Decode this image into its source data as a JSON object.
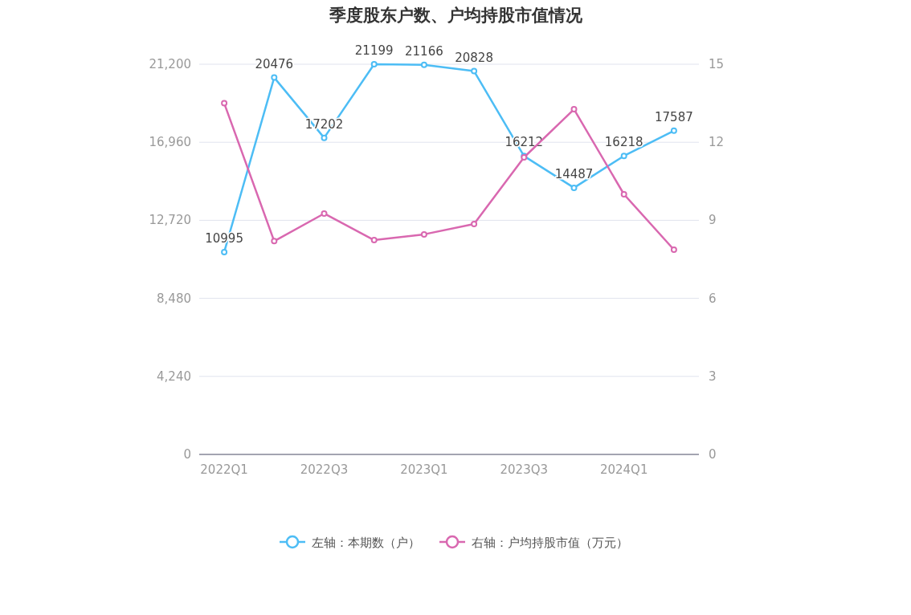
{
  "chart_data": {
    "type": "line",
    "title": "季度股东户数、户均持股市值情况",
    "categories": [
      "2022Q1",
      null,
      "2022Q3",
      null,
      "2023Q1",
      null,
      "2023Q3",
      null,
      "2024Q1",
      null
    ],
    "series": [
      {
        "name": "左轴：本期数（户）",
        "color": "#4dbdf5",
        "values": [
          10995,
          20476,
          17202,
          21199,
          21166,
          20828,
          16212,
          14487,
          16218,
          17587
        ],
        "value_labels": [
          "10995",
          "20476",
          "17202",
          "21199",
          "21166",
          "20828",
          "16212",
          "14487",
          "16218",
          "17587"
        ]
      },
      {
        "name": "右轴：户均持股市值（万元）",
        "color": "#d968b0",
        "axis": "y2",
        "values": [
          13.5,
          8.2,
          9.26,
          8.24,
          8.46,
          8.86,
          11.42,
          13.27,
          10.0,
          7.87
        ]
      }
    ],
    "ylim": [
      0,
      21200
    ],
    "yticks": [
      0,
      {
        "value": 4240,
        "label": "4,240"
      },
      {
        "value": 8480,
        "label": "8,480"
      },
      {
        "value": 12720,
        "label": "12,720"
      },
      {
        "value": 16960,
        "label": "16,960"
      },
      {
        "value": 21200,
        "label": "21,200"
      }
    ],
    "y2lim": [
      0,
      15
    ],
    "y2ticks": [
      0,
      3,
      6,
      9,
      12,
      15
    ],
    "grid": "y",
    "legend": "bottom",
    "marker": "circle",
    "line_style": "solid"
  }
}
